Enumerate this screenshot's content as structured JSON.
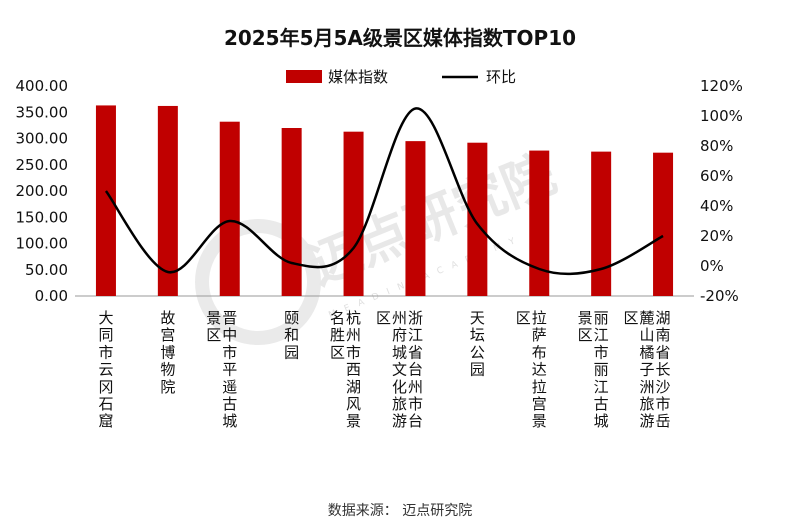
{
  "chart_data": {
    "type": "bar",
    "title": "2025年5月5A级景区媒体指数TOP10",
    "categories": [
      "大同市云冈石窟",
      "故宫博物院",
      "晋中市平遥古城景区",
      "颐和园",
      "杭州市西湖风景名胜区",
      "浙江省台州市台州府城文化旅游区",
      "天坛公园",
      "拉萨布达拉宫景区",
      "丽江市丽江古城景区",
      "湖南省长沙市岳麓山橘子洲旅游区"
    ],
    "series": [
      {
        "name": "媒体指数",
        "kind": "bar",
        "axis": "left",
        "color": "#c00000",
        "values": [
          363,
          362,
          332,
          320,
          313,
          295,
          292,
          277,
          275,
          273
        ]
      },
      {
        "name": "环比",
        "kind": "line",
        "axis": "right",
        "color": "#000000",
        "values": [
          50,
          -4,
          30,
          2,
          12,
          105,
          28,
          -2,
          -2,
          20
        ]
      }
    ],
    "ylim_left": [
      0,
      400
    ],
    "yticks_left": [
      "0.00",
      "50.00",
      "100.00",
      "150.00",
      "200.00",
      "250.00",
      "300.00",
      "350.00",
      "400.00"
    ],
    "ylim_right": [
      -20,
      120
    ],
    "yticks_right": [
      "-20%",
      "0%",
      "20%",
      "40%",
      "60%",
      "80%",
      "100%",
      "120%"
    ],
    "legend": {
      "placement": "top-center",
      "items": [
        "媒体指数",
        "环比"
      ]
    },
    "source": "数据来源：   迈点研究院",
    "watermark": {
      "text": "迈点研究院",
      "sub": "MEADIN ACADEMY"
    }
  }
}
